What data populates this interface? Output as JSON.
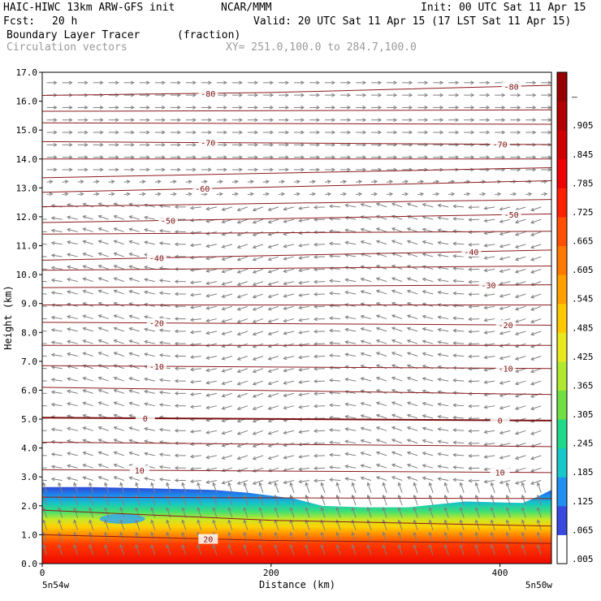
{
  "header": {
    "title_left": "HAIC-HIWC 13km ARW-GFS init",
    "org": "NCAR/MMM",
    "init": "Init: 00 UTC Sat 11 Apr 15",
    "fcst_label": "Fcst:",
    "fcst_value": "20 h",
    "valid": "Valid: 20 UTC Sat 11 Apr 15 (17 LST Sat 11 Apr 15)",
    "field_name": "Boundary Layer Tracer",
    "field_units": "(fraction)",
    "vector_name": "Circulation vectors",
    "xy": "XY= 251.0,100.0 to 284.7,100.0"
  },
  "chart_data": {
    "type": "heatmap",
    "xlabel": "Distance (km)",
    "ylabel": "Height (km)",
    "xlim": [
      0,
      445
    ],
    "ylim": [
      0,
      17
    ],
    "x_ticks": [
      0,
      200,
      400
    ],
    "y_ticks": [
      "0.0",
      "1.0",
      "2.0",
      "3.0",
      "4.0",
      "5.0",
      "6.0",
      "7.0",
      "8.0",
      "9.0",
      "10.0",
      "11.0",
      "12.0",
      "13.0",
      "14.0",
      "15.0",
      "16.0",
      "17.0"
    ],
    "x_end_labels": [
      "5n54w",
      "5n50w"
    ],
    "colorbar_labels": [
      ".005",
      ".065",
      ".125",
      ".185",
      ".245",
      ".305",
      ".365",
      ".425",
      ".485",
      ".545",
      ".605",
      ".665",
      ".725",
      ".785",
      ".845",
      ".905",
      "–"
    ],
    "colorbar_colors": [
      "#ffffff",
      "#3848e0",
      "#1f8ff0",
      "#18c8c8",
      "#20d888",
      "#70e040",
      "#b0e830",
      "#e8e820",
      "#ffc800",
      "#ffa000",
      "#ff7800",
      "#ff5000",
      "#ff2000",
      "#ee0000",
      "#d00000",
      "#b00000",
      "#980000"
    ],
    "tracer_top_km": [
      [
        0,
        2.65
      ],
      [
        40,
        2.65
      ],
      [
        100,
        2.6
      ],
      [
        150,
        2.55
      ],
      [
        180,
        2.45
      ],
      [
        220,
        2.25
      ],
      [
        245,
        2.0
      ],
      [
        280,
        1.95
      ],
      [
        320,
        1.95
      ],
      [
        345,
        2.05
      ],
      [
        370,
        2.15
      ],
      [
        420,
        2.1
      ],
      [
        432,
        2.3
      ],
      [
        445,
        2.55
      ]
    ],
    "temperature_contours": [
      {
        "label": "0",
        "points": [
          [
            0,
            5.05
          ],
          [
            445,
            4.95
          ]
        ],
        "label_x": [
          90,
          400
        ]
      },
      {
        "label": "10",
        "points": [
          [
            0,
            3.25
          ],
          [
            445,
            3.15
          ]
        ],
        "label_x": [
          85,
          400
        ]
      },
      {
        "label": "20",
        "points": [
          [
            0,
            1.0
          ],
          [
            200,
            0.8
          ],
          [
            445,
            0.7
          ]
        ],
        "label_x": [
          145
        ]
      },
      {
        "label": "-10",
        "points": [
          [
            0,
            6.85
          ],
          [
            445,
            6.75
          ]
        ],
        "label_x": [
          100,
          405
        ]
      },
      {
        "label": "-20",
        "points": [
          [
            0,
            8.35
          ],
          [
            445,
            8.25
          ]
        ],
        "label_x": [
          100,
          405
        ]
      },
      {
        "label": "-30",
        "points": [
          [
            0,
            9.55
          ],
          [
            445,
            9.65
          ]
        ],
        "label_x": [
          390
        ]
      },
      {
        "label": "-40",
        "points": [
          [
            0,
            10.5
          ],
          [
            445,
            10.85
          ]
        ],
        "label_x": [
          100,
          375
        ]
      },
      {
        "label": "-50",
        "points": [
          [
            0,
            11.8
          ],
          [
            445,
            12.1
          ]
        ],
        "label_x": [
          110,
          410
        ]
      },
      {
        "label": "-60",
        "points": [
          [
            0,
            12.85
          ],
          [
            445,
            13.25
          ]
        ],
        "label_x": [
          140
        ]
      },
      {
        "label": "-70",
        "points": [
          [
            0,
            14.6
          ],
          [
            445,
            14.5
          ]
        ],
        "label_x": [
          145,
          400
        ]
      },
      {
        "label": "-80",
        "points": [
          [
            0,
            16.2
          ],
          [
            200,
            16.3
          ],
          [
            445,
            16.55
          ]
        ],
        "label_x": [
          145,
          410
        ]
      },
      {
        "label": "",
        "points": [
          [
            0,
            7.55
          ],
          [
            445,
            7.55
          ]
        ],
        "label_x": []
      },
      {
        "label": "",
        "points": [
          [
            0,
            8.95
          ],
          [
            445,
            8.95
          ]
        ],
        "label_x": []
      },
      {
        "label": "",
        "points": [
          [
            0,
            10.15
          ],
          [
            445,
            10.3
          ]
        ],
        "label_x": []
      },
      {
        "label": "",
        "points": [
          [
            0,
            11.4
          ],
          [
            445,
            11.5
          ]
        ],
        "label_x": []
      },
      {
        "label": "",
        "points": [
          [
            0,
            12.35
          ],
          [
            445,
            12.6
          ]
        ],
        "label_x": []
      },
      {
        "label": "",
        "points": [
          [
            0,
            13.35
          ],
          [
            445,
            13.7
          ]
        ],
        "label_x": []
      },
      {
        "label": "",
        "points": [
          [
            0,
            14.0
          ],
          [
            445,
            14.0
          ]
        ],
        "label_x": []
      },
      {
        "label": "",
        "points": [
          [
            0,
            15.25
          ],
          [
            445,
            15.2
          ]
        ],
        "label_x": []
      },
      {
        "label": "",
        "points": [
          [
            0,
            15.65
          ],
          [
            445,
            15.7
          ]
        ],
        "label_x": []
      },
      {
        "label": "",
        "points": [
          [
            0,
            6.1
          ],
          [
            445,
            5.85
          ]
        ],
        "label_x": []
      },
      {
        "label": "",
        "points": [
          [
            0,
            4.2
          ],
          [
            445,
            4.05
          ]
        ],
        "label_x": []
      },
      {
        "label": "",
        "points": [
          [
            0,
            2.3
          ],
          [
            445,
            2.25
          ]
        ],
        "label_x": []
      },
      {
        "label": "",
        "points": [
          [
            0,
            1.85
          ],
          [
            200,
            1.5
          ],
          [
            445,
            1.3
          ]
        ],
        "label_x": []
      }
    ]
  }
}
